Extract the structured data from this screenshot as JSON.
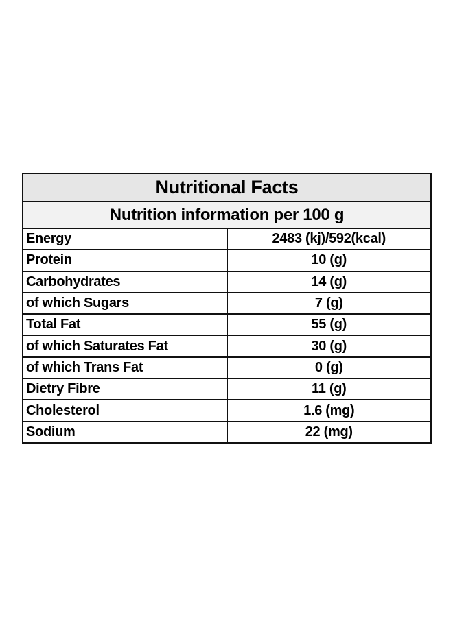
{
  "title": "Nutritional Facts",
  "subtitle": "Nutrition information per 100 g",
  "rows": [
    {
      "label": "Energy",
      "value": "2483 (kj)/592(kcal)"
    },
    {
      "label": "Protein",
      "value": "10 (g)"
    },
    {
      "label": "Carbohydrates",
      "value": "14 (g)"
    },
    {
      "label": "of which Sugars",
      "value": "7 (g)"
    },
    {
      "label": "Total Fat",
      "value": "55 (g)"
    },
    {
      "label": "of which Saturates Fat",
      "value": "30 (g)"
    },
    {
      "label": "of which Trans Fat",
      "value": "0 (g)"
    },
    {
      "label": "Dietry Fibre",
      "value": "11 (g)"
    },
    {
      "label": "Cholesterol",
      "value": "1.6 (mg)"
    },
    {
      "label": "Sodium",
      "value": "22 (mg)"
    }
  ],
  "colors": {
    "title_background": "#e6e6e6",
    "subtitle_background": "#f2f2f2",
    "border": "#111111"
  }
}
